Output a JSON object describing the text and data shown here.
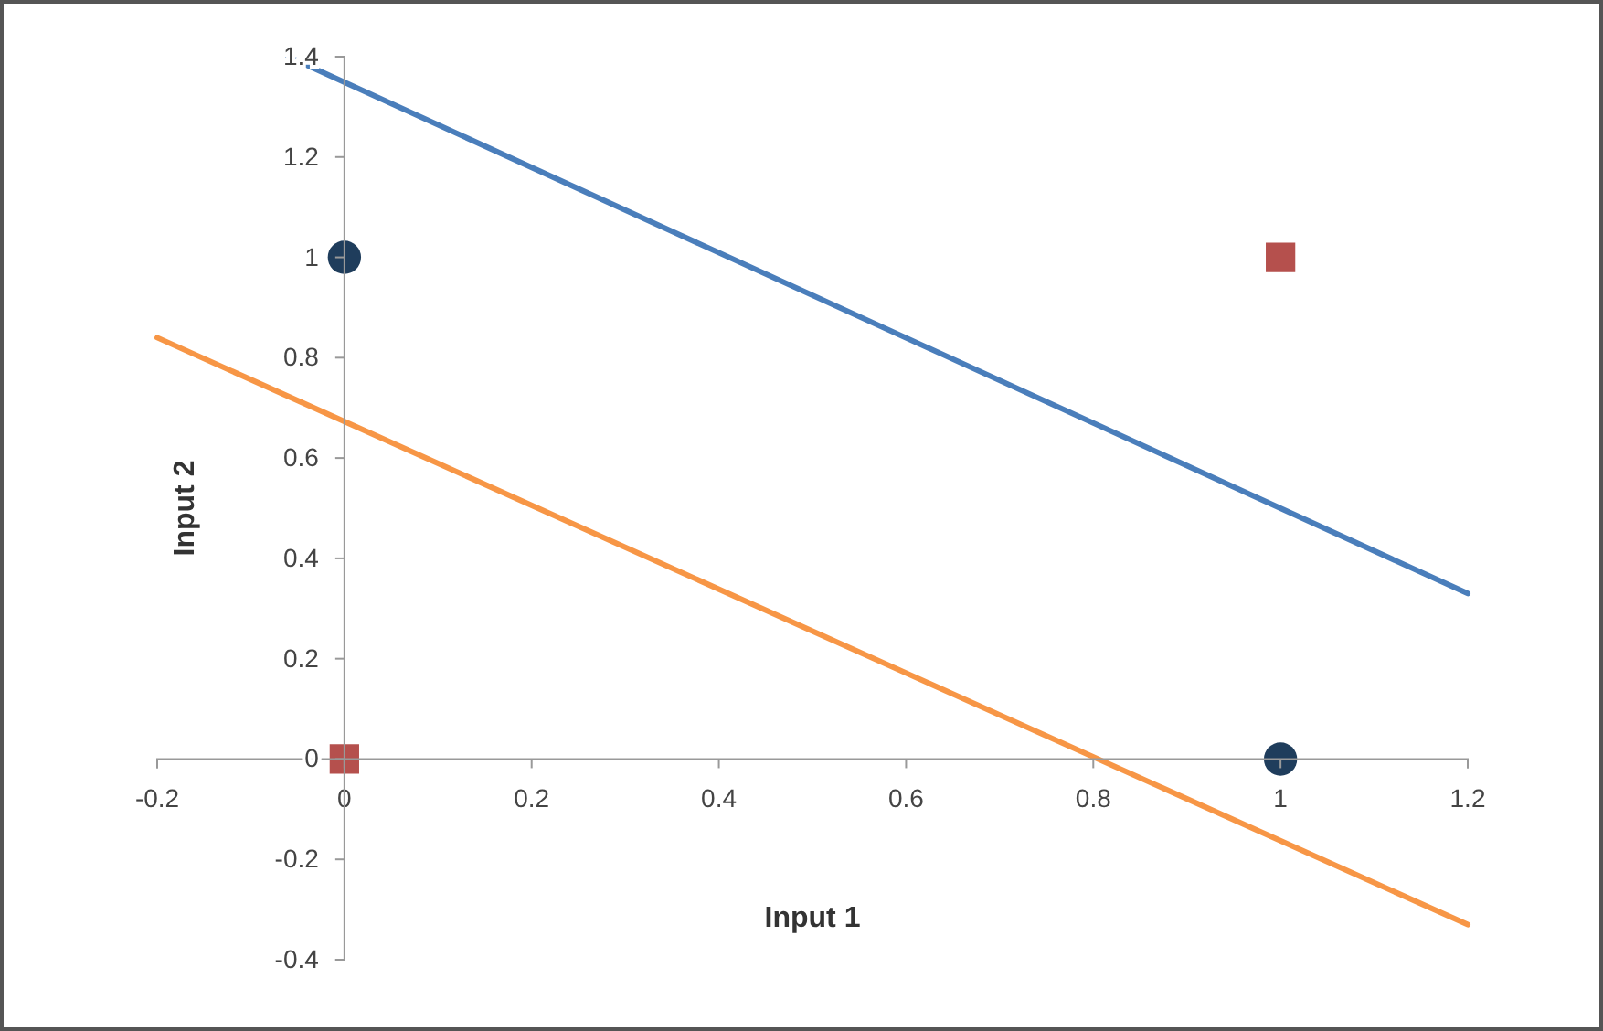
{
  "chart_data": {
    "type": "scatter",
    "xlabel": "Input 1",
    "ylabel": "Input 2",
    "xlim": [
      -0.2,
      1.2
    ],
    "xticks": [
      -0.2,
      0,
      0.2,
      0.4,
      0.6,
      0.8,
      1,
      1.2
    ],
    "ylim": [
      -0.4,
      1.4
    ],
    "yticks": [
      -0.4,
      -0.2,
      0,
      0.2,
      0.4,
      0.6,
      0.8,
      1,
      1.2,
      1.4
    ],
    "grid": false,
    "series": [
      {
        "type": "line",
        "color": "#4a7ebb",
        "x": [
          -0.06,
          1.2
        ],
        "values": [
          1.4,
          0.33
        ],
        "marker": "none"
      },
      {
        "type": "line",
        "color": "#f79646",
        "x": [
          -0.2,
          1.2
        ],
        "values": [
          0.84,
          -0.33
        ],
        "marker": "none"
      },
      {
        "color": "#1f3d5c",
        "x": [
          0,
          1
        ],
        "values": [
          1,
          0
        ],
        "marker": "circle"
      },
      {
        "color": "#b5504d",
        "x": [
          0,
          1
        ],
        "values": [
          0,
          1
        ],
        "marker": "square"
      }
    ]
  }
}
